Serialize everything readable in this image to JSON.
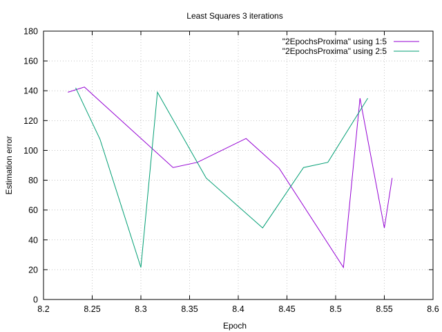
{
  "chart_data": {
    "type": "line",
    "title": "Least Squares 3 iterations",
    "xlabel": "Epoch",
    "ylabel": "Estimation error",
    "xlim": [
      8.2,
      8.6
    ],
    "ylim": [
      0,
      180
    ],
    "xticks": [
      "8.2",
      "8.25",
      "8.3",
      "8.35",
      "8.4",
      "8.45",
      "8.5",
      "8.55",
      "8.6"
    ],
    "yticks": [
      "0",
      "20",
      "40",
      "60",
      "80",
      "100",
      "120",
      "140",
      "160",
      "180"
    ],
    "grid": true,
    "legend_position": "top-right",
    "series": [
      {
        "name": "\"2EpochsProxima\" using 1:5",
        "color": "#9400d3",
        "points": [
          [
            8.225,
            139
          ],
          [
            8.242,
            142.5
          ],
          [
            8.333,
            88.5
          ],
          [
            8.358,
            92
          ],
          [
            8.408,
            108
          ],
          [
            8.442,
            88
          ],
          [
            8.508,
            21.5
          ],
          [
            8.525,
            135
          ],
          [
            8.55,
            48
          ],
          [
            8.558,
            81.5
          ]
        ]
      },
      {
        "name": "\"2EpochsProxima\" using 2:5",
        "color": "#009e73",
        "points": [
          [
            8.233,
            142
          ],
          [
            8.258,
            107.5
          ],
          [
            8.3,
            21.5
          ],
          [
            8.317,
            139
          ],
          [
            8.367,
            81.5
          ],
          [
            8.425,
            48
          ],
          [
            8.467,
            88.5
          ],
          [
            8.492,
            92
          ],
          [
            8.533,
            135
          ]
        ]
      }
    ]
  }
}
